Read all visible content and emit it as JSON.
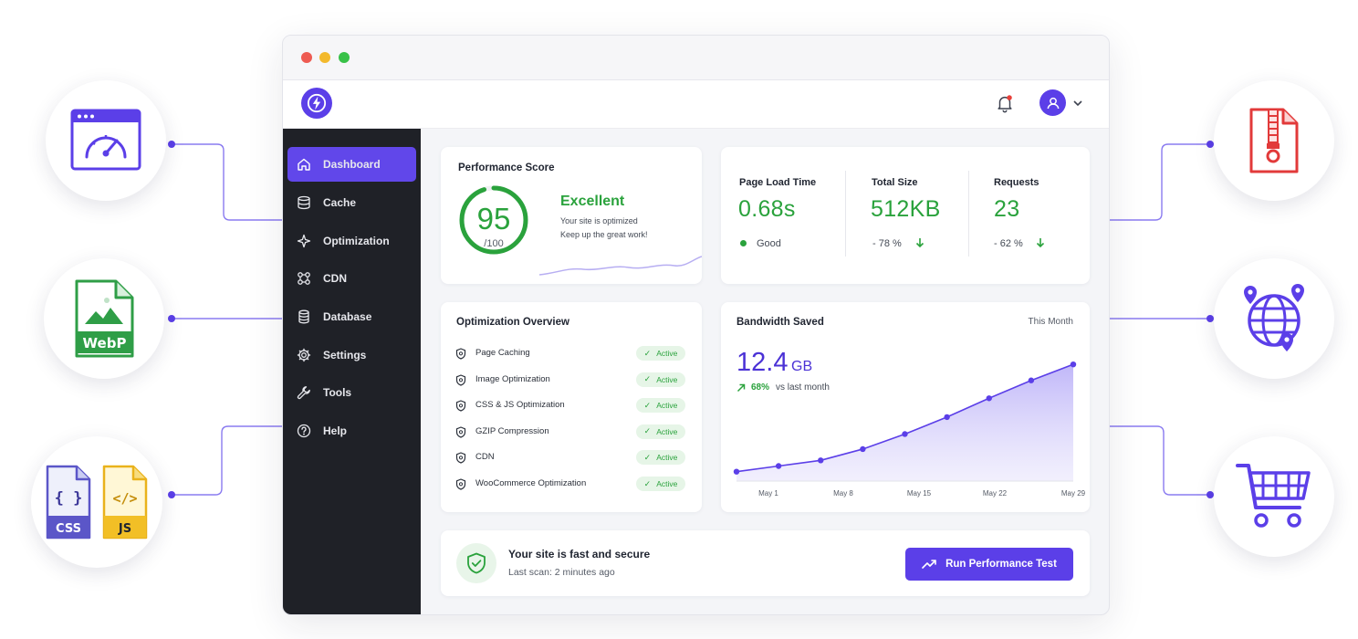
{
  "window": {
    "traffic_lights": {
      "close": "#ee5b52",
      "minimize": "#f3b92c",
      "maximize": "#38c148"
    }
  },
  "header": {
    "logo_icon": "lightning-icon",
    "notification_icon": "bell-icon",
    "avatar_icon": "user-icon"
  },
  "sidebar": {
    "items": [
      {
        "label": "Dashboard",
        "icon": "home-icon",
        "active": true
      },
      {
        "label": "Cache",
        "icon": "cache-icon"
      },
      {
        "label": "Optimization",
        "icon": "sparkle-icon"
      },
      {
        "label": "CDN",
        "icon": "cdn-icon"
      },
      {
        "label": "Database",
        "icon": "database-icon"
      },
      {
        "label": "Settings",
        "icon": "gear-icon"
      },
      {
        "label": "Tools",
        "icon": "wrench-icon"
      },
      {
        "label": "Help",
        "icon": "help-icon"
      }
    ]
  },
  "performance": {
    "title": "Performance Score",
    "score": "95",
    "max": "/100",
    "score_fraction": 0.95,
    "rating": "Excellent",
    "message_line1": "Your site is optimized",
    "message_line2": "Keep up the great work!"
  },
  "metrics": [
    {
      "label": "Page Load Time",
      "value": "0.68s",
      "sub": "Good"
    },
    {
      "label": "Total Size",
      "value": "512KB",
      "sub": "- 78 %"
    },
    {
      "label": "Requests",
      "value": "23",
      "sub": "- 62 %"
    }
  ],
  "optimization": {
    "title": "Optimization Overview",
    "items": [
      {
        "label": "Page Caching",
        "status": "Active"
      },
      {
        "label": "Image Optimization",
        "status": "Active"
      },
      {
        "label": "CSS & JS Optimization",
        "status": "Active"
      },
      {
        "label": "GZIP Compression",
        "status": "Active"
      },
      {
        "label": "CDN",
        "status": "Active"
      },
      {
        "label": "WooCommerce Optimization",
        "status": "Active"
      }
    ]
  },
  "bandwidth": {
    "title": "Bandwidth Saved",
    "period": "This Month",
    "value": "12.4",
    "unit": "GB",
    "change": "68%",
    "change_suffix": "vs last month"
  },
  "chart_data": {
    "type": "area",
    "title": "Bandwidth Saved",
    "categories": [
      "May 1",
      "May 8",
      "May 15",
      "May 22",
      "May 29"
    ],
    "x": [
      0,
      1,
      2,
      3,
      4,
      5,
      6,
      7,
      8
    ],
    "values": [
      1.0,
      1.6,
      2.2,
      3.4,
      5.0,
      6.8,
      8.8,
      10.7,
      12.4
    ],
    "ylim": [
      0,
      13
    ],
    "grid": false,
    "legend": "none",
    "color": "#5b3fe8"
  },
  "status": {
    "icon": "shield-check-icon",
    "title": "Your site is fast and secure",
    "last_scan": "Last scan: 2 minutes ago",
    "button_label": "Run Performance Test"
  },
  "features": {
    "left": [
      {
        "name": "speedometer-icon"
      },
      {
        "name": "webp-icon",
        "text": "WebP"
      },
      {
        "name": "css-js-icon",
        "css_text": "CSS",
        "js_text": "JS"
      }
    ],
    "right": [
      {
        "name": "zip-file-icon"
      },
      {
        "name": "globe-icon"
      },
      {
        "name": "cart-icon"
      }
    ]
  }
}
